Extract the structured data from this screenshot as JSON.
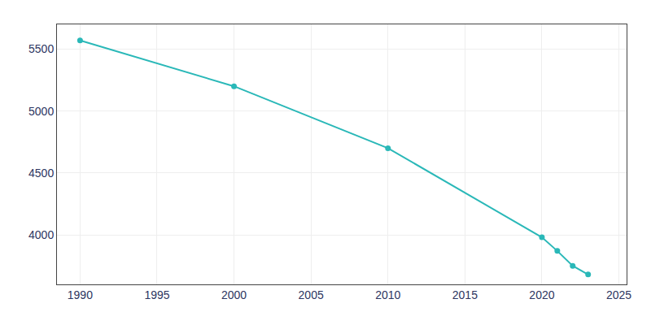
{
  "chart_data": {
    "type": "line",
    "x": [
      1990,
      2000,
      2010,
      2020,
      2021,
      2022,
      2023
    ],
    "values": [
      5570,
      5200,
      4700,
      3980,
      3870,
      3750,
      3680
    ],
    "color": "#2ab8b8",
    "marker": "circle",
    "xlim": [
      1988.5,
      2025.5
    ],
    "ylim": [
      3600,
      5700
    ],
    "xticks": [
      1990,
      1995,
      2000,
      2005,
      2010,
      2015,
      2020,
      2025
    ],
    "yticks": [
      4000,
      4500,
      5000,
      5500
    ],
    "grid": true
  }
}
